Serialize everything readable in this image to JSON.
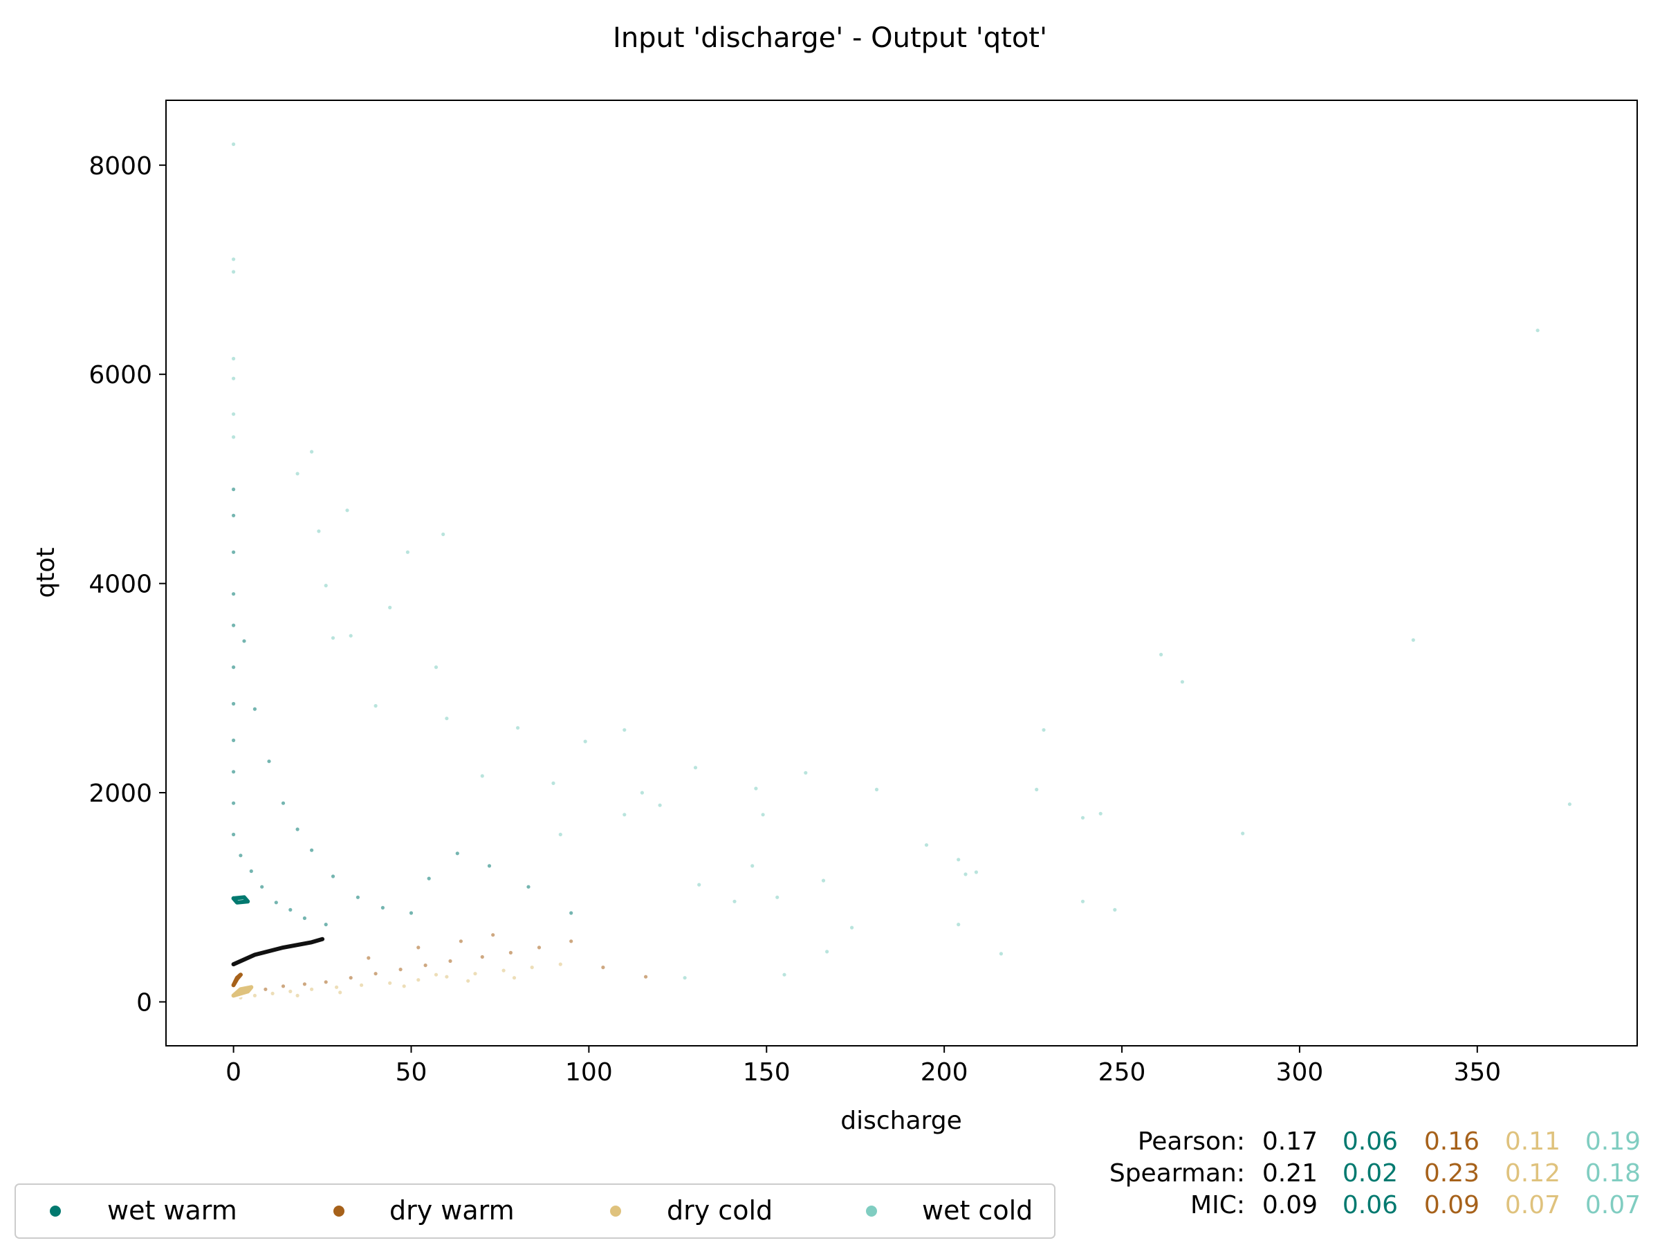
{
  "chart_data": {
    "type": "scatter",
    "title": "Input 'discharge' - Output 'qtot'",
    "xlabel": "discharge",
    "ylabel": "qtot",
    "xlim": [
      -19,
      395
    ],
    "ylim": [
      -420,
      8620
    ],
    "xticks": [
      0,
      50,
      100,
      150,
      200,
      250,
      300,
      350
    ],
    "yticks": [
      0,
      2000,
      4000,
      6000,
      8000
    ],
    "grid": false,
    "legend_position": "bottom-left",
    "series": [
      {
        "name": "wet warm",
        "color": "#01796f"
      },
      {
        "name": "dry warm",
        "color": "#a6611a"
      },
      {
        "name": "dry cold",
        "color": "#dfc27d"
      },
      {
        "name": "wet cold",
        "color": "#80cdc1"
      }
    ],
    "points": {
      "wet cold": [
        [
          0,
          8200
        ],
        [
          0,
          7100
        ],
        [
          0,
          6980
        ],
        [
          0,
          6150
        ],
        [
          0,
          5960
        ],
        [
          0,
          5620
        ],
        [
          0,
          5400
        ],
        [
          367,
          6420
        ],
        [
          332,
          3460
        ],
        [
          261,
          3320
        ],
        [
          267,
          3060
        ],
        [
          228,
          2600
        ],
        [
          376,
          1890
        ],
        [
          284,
          1610
        ],
        [
          239,
          1760
        ],
        [
          244,
          1800
        ],
        [
          226,
          2030
        ],
        [
          181,
          2030
        ],
        [
          195,
          1500
        ],
        [
          204,
          1360
        ],
        [
          206,
          1220
        ],
        [
          209,
          1240
        ],
        [
          248,
          880
        ],
        [
          239,
          960
        ],
        [
          204,
          740
        ],
        [
          216,
          460
        ],
        [
          174,
          710
        ],
        [
          166,
          1160
        ],
        [
          167,
          480
        ],
        [
          161,
          2190
        ],
        [
          147,
          2040
        ],
        [
          149,
          1790
        ],
        [
          130,
          2240
        ],
        [
          120,
          1880
        ],
        [
          110,
          2600
        ],
        [
          99,
          2490
        ],
        [
          90,
          2090
        ],
        [
          80,
          2620
        ],
        [
          70,
          2160
        ],
        [
          60,
          2710
        ],
        [
          59,
          4470
        ],
        [
          49,
          4300
        ],
        [
          44,
          3770
        ],
        [
          32,
          4700
        ],
        [
          24,
          4500
        ],
        [
          22,
          5260
        ],
        [
          18,
          5050
        ],
        [
          26,
          3980
        ],
        [
          28,
          3480
        ],
        [
          33,
          3500
        ],
        [
          40,
          2830
        ],
        [
          57,
          3200
        ],
        [
          115,
          2000
        ],
        [
          110,
          1790
        ],
        [
          153,
          1000
        ],
        [
          146,
          1300
        ],
        [
          131,
          1120
        ],
        [
          141,
          960
        ],
        [
          155,
          260
        ],
        [
          127,
          230
        ],
        [
          92,
          1600
        ]
      ],
      "wet warm": [
        [
          0,
          4900
        ],
        [
          0,
          4650
        ],
        [
          0,
          4300
        ],
        [
          0,
          3900
        ],
        [
          0,
          3600
        ],
        [
          0,
          3200
        ],
        [
          0,
          2850
        ],
        [
          0,
          2500
        ],
        [
          0,
          2200
        ],
        [
          0,
          1900
        ],
        [
          0,
          1600
        ],
        [
          2,
          1400
        ],
        [
          5,
          1250
        ],
        [
          8,
          1100
        ],
        [
          12,
          950
        ],
        [
          16,
          880
        ],
        [
          20,
          800
        ],
        [
          26,
          740
        ],
        [
          3,
          3450
        ],
        [
          6,
          2800
        ],
        [
          10,
          2300
        ],
        [
          14,
          1900
        ],
        [
          18,
          1650
        ],
        [
          22,
          1450
        ],
        [
          28,
          1200
        ],
        [
          35,
          1000
        ],
        [
          42,
          900
        ],
        [
          50,
          850
        ],
        [
          55,
          1180
        ],
        [
          63,
          1420
        ],
        [
          72,
          1300
        ],
        [
          83,
          1100
        ],
        [
          95,
          850
        ]
      ],
      "dry warm": [
        [
          4,
          90
        ],
        [
          9,
          120
        ],
        [
          14,
          150
        ],
        [
          20,
          170
        ],
        [
          26,
          190
        ],
        [
          33,
          230
        ],
        [
          40,
          270
        ],
        [
          47,
          310
        ],
        [
          54,
          350
        ],
        [
          61,
          390
        ],
        [
          70,
          430
        ],
        [
          78,
          470
        ],
        [
          86,
          520
        ],
        [
          95,
          580
        ],
        [
          104,
          330
        ],
        [
          116,
          240
        ],
        [
          38,
          420
        ],
        [
          52,
          520
        ],
        [
          64,
          580
        ],
        [
          73,
          640
        ]
      ],
      "dry cold": [
        [
          2,
          40
        ],
        [
          6,
          60
        ],
        [
          11,
          80
        ],
        [
          16,
          100
        ],
        [
          22,
          120
        ],
        [
          29,
          140
        ],
        [
          36,
          160
        ],
        [
          44,
          180
        ],
        [
          52,
          210
        ],
        [
          60,
          240
        ],
        [
          68,
          270
        ],
        [
          76,
          300
        ],
        [
          84,
          330
        ],
        [
          92,
          360
        ],
        [
          79,
          230
        ],
        [
          66,
          200
        ],
        [
          48,
          150
        ],
        [
          30,
          90
        ],
        [
          18,
          60
        ],
        [
          57,
          260
        ]
      ]
    },
    "contours": [
      {
        "series": "wet cold",
        "x": [
          0,
          6,
          14,
          22,
          25
        ],
        "y": [
          360,
          450,
          520,
          570,
          600
        ]
      },
      {
        "series": "wet warm",
        "x": [
          0,
          3,
          4,
          1,
          0
        ],
        "y": [
          990,
          1000,
          960,
          950,
          990
        ]
      },
      {
        "series": "dry warm",
        "x": [
          0,
          1,
          2,
          1,
          0
        ],
        "y": [
          160,
          230,
          260,
          220,
          160
        ]
      },
      {
        "series": "dry cold",
        "x": [
          0,
          4,
          5,
          2,
          0
        ],
        "y": [
          60,
          100,
          140,
          120,
          60
        ]
      }
    ],
    "stats": [
      {
        "label": "Pearson:",
        "values": [
          "0.17",
          "0.06",
          "0.16",
          "0.11",
          "0.19"
        ]
      },
      {
        "label": "Spearman:",
        "values": [
          "0.21",
          "0.02",
          "0.23",
          "0.12",
          "0.18"
        ]
      },
      {
        "label": "MIC:",
        "values": [
          "0.09",
          "0.06",
          "0.09",
          "0.07",
          "0.07"
        ]
      }
    ],
    "stat_colors": [
      "#000000",
      "#01796f",
      "#a6611a",
      "#dfc27d",
      "#80cdc1"
    ]
  }
}
